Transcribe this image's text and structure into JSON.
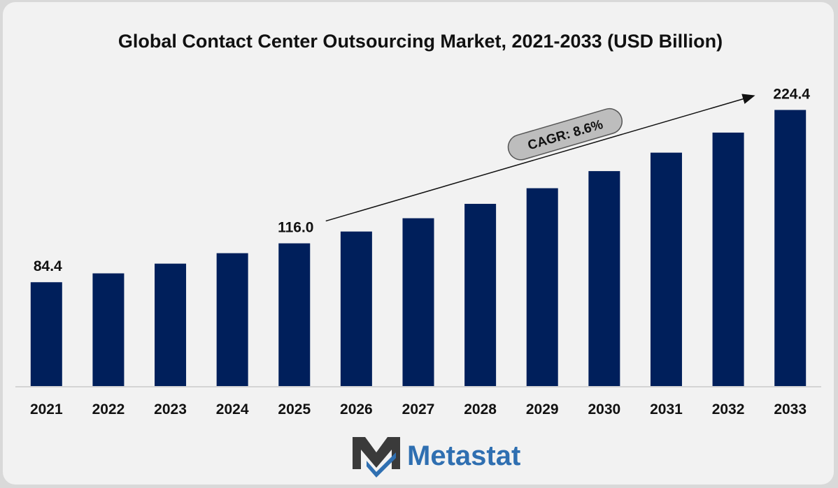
{
  "chart_data": {
    "type": "bar",
    "title": "Global Contact Center Outsourcing Market, 2021-2033 (USD Billion)",
    "xlabel": "",
    "ylabel": "",
    "categories": [
      "2021",
      "2022",
      "2023",
      "2024",
      "2025",
      "2026",
      "2027",
      "2028",
      "2029",
      "2030",
      "2031",
      "2032",
      "2033"
    ],
    "values": [
      84.4,
      91.6,
      99.5,
      108.0,
      116.0,
      125.6,
      136.4,
      148.1,
      160.8,
      174.7,
      189.7,
      206.0,
      224.4
    ],
    "ylim": [
      0,
      240
    ],
    "grid": false,
    "legend": "none",
    "bar_color": "#001f5b",
    "data_labels": [
      {
        "category": "2021",
        "text": "84.4"
      },
      {
        "category": "2025",
        "text": "116.0"
      },
      {
        "category": "2033",
        "text": "224.4"
      }
    ],
    "annotation": {
      "text": "CAGR: 8.6%",
      "from_category": "2025",
      "to_category": "2033"
    }
  },
  "logo": {
    "text": "Metastat",
    "mark_color": "#3a3a3a",
    "text_color": "#2f6fb1"
  }
}
